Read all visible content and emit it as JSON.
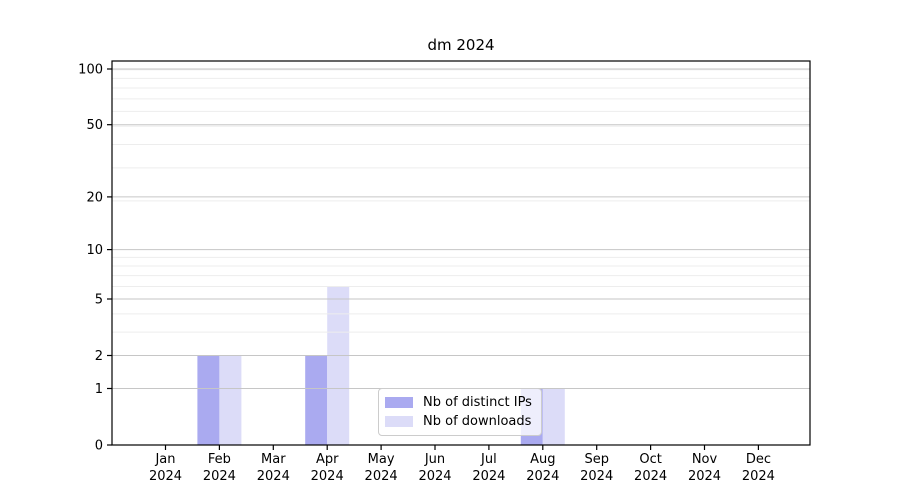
{
  "chart_data": {
    "type": "bar",
    "title": "dm 2024",
    "categories": [
      "Jan",
      "Feb",
      "Mar",
      "Apr",
      "May",
      "Jun",
      "Jul",
      "Aug",
      "Sep",
      "Oct",
      "Nov",
      "Dec"
    ],
    "year_label": "2024",
    "series": [
      {
        "name": "Nb of distinct IPs",
        "color": "#aaaaf0",
        "values": [
          0,
          2,
          0,
          2,
          0,
          0,
          0,
          1,
          0,
          0,
          0,
          0
        ]
      },
      {
        "name": "Nb of downloads",
        "color": "#dcdcf8",
        "values": [
          0,
          2,
          0,
          6,
          0,
          0,
          0,
          1,
          0,
          0,
          0,
          0
        ]
      }
    ],
    "y_axis": {
      "scale": "log1p",
      "ticks": [
        0,
        1,
        2,
        5,
        10,
        20,
        50,
        100
      ],
      "minor_ticks": [
        3,
        4,
        6,
        7,
        8,
        9,
        19,
        29,
        39,
        49,
        59,
        69,
        79,
        89,
        99
      ],
      "ylim": [
        0,
        110
      ]
    },
    "grid": {
      "major_color": "#c6c6c6",
      "minor_color": "#ededed"
    },
    "axis_color": "#000000",
    "legend": {
      "position": "inside-bottom-center"
    }
  }
}
